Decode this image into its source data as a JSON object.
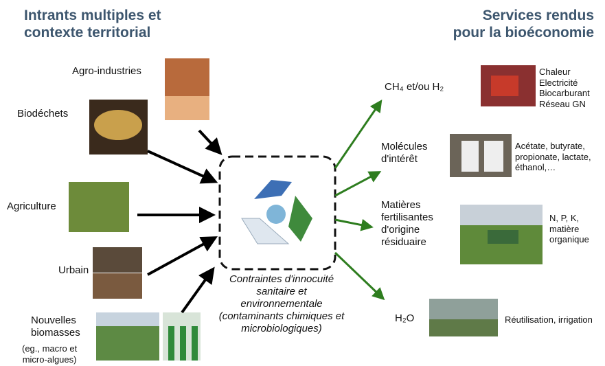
{
  "title_left": [
    "Intrants multiples et",
    "contexte territorial"
  ],
  "title_right": [
    "Services rendus",
    "pour la bioéconomie"
  ],
  "inputs": [
    {
      "label": [
        "Agro-industries"
      ]
    },
    {
      "label": [
        "Biodéchets"
      ]
    },
    {
      "label": [
        "Agriculture"
      ]
    },
    {
      "label": [
        "Urbain"
      ]
    },
    {
      "label": [
        "Nouvelles",
        "biomasses"
      ],
      "note": [
        "(eg., macro et",
        "micro-algues)"
      ]
    }
  ],
  "center_caption": [
    "Contraintes d'innocuité",
    "sanitaire et",
    "environnementale",
    "(contaminants chimiques et",
    "microbiologiques)"
  ],
  "outputs": [
    {
      "label": [
        "CH₄ et/ou H₂"
      ],
      "details": [
        "Chaleur",
        "Electricité",
        "Biocarburant",
        "Réseau GN"
      ]
    },
    {
      "label": [
        "Molécules",
        "d'intérêt"
      ],
      "details": [
        "Acétate, butyrate,",
        "propionate, lactate,",
        "éthanol,…"
      ]
    },
    {
      "label": [
        "Matières",
        "fertilisantes",
        "d'origine",
        "résiduaire"
      ],
      "details": [
        "N, P, K,",
        "matière",
        "organique"
      ]
    },
    {
      "label": [
        "H₂O"
      ],
      "details": [
        "Réutilisation, irrigation"
      ]
    }
  ]
}
